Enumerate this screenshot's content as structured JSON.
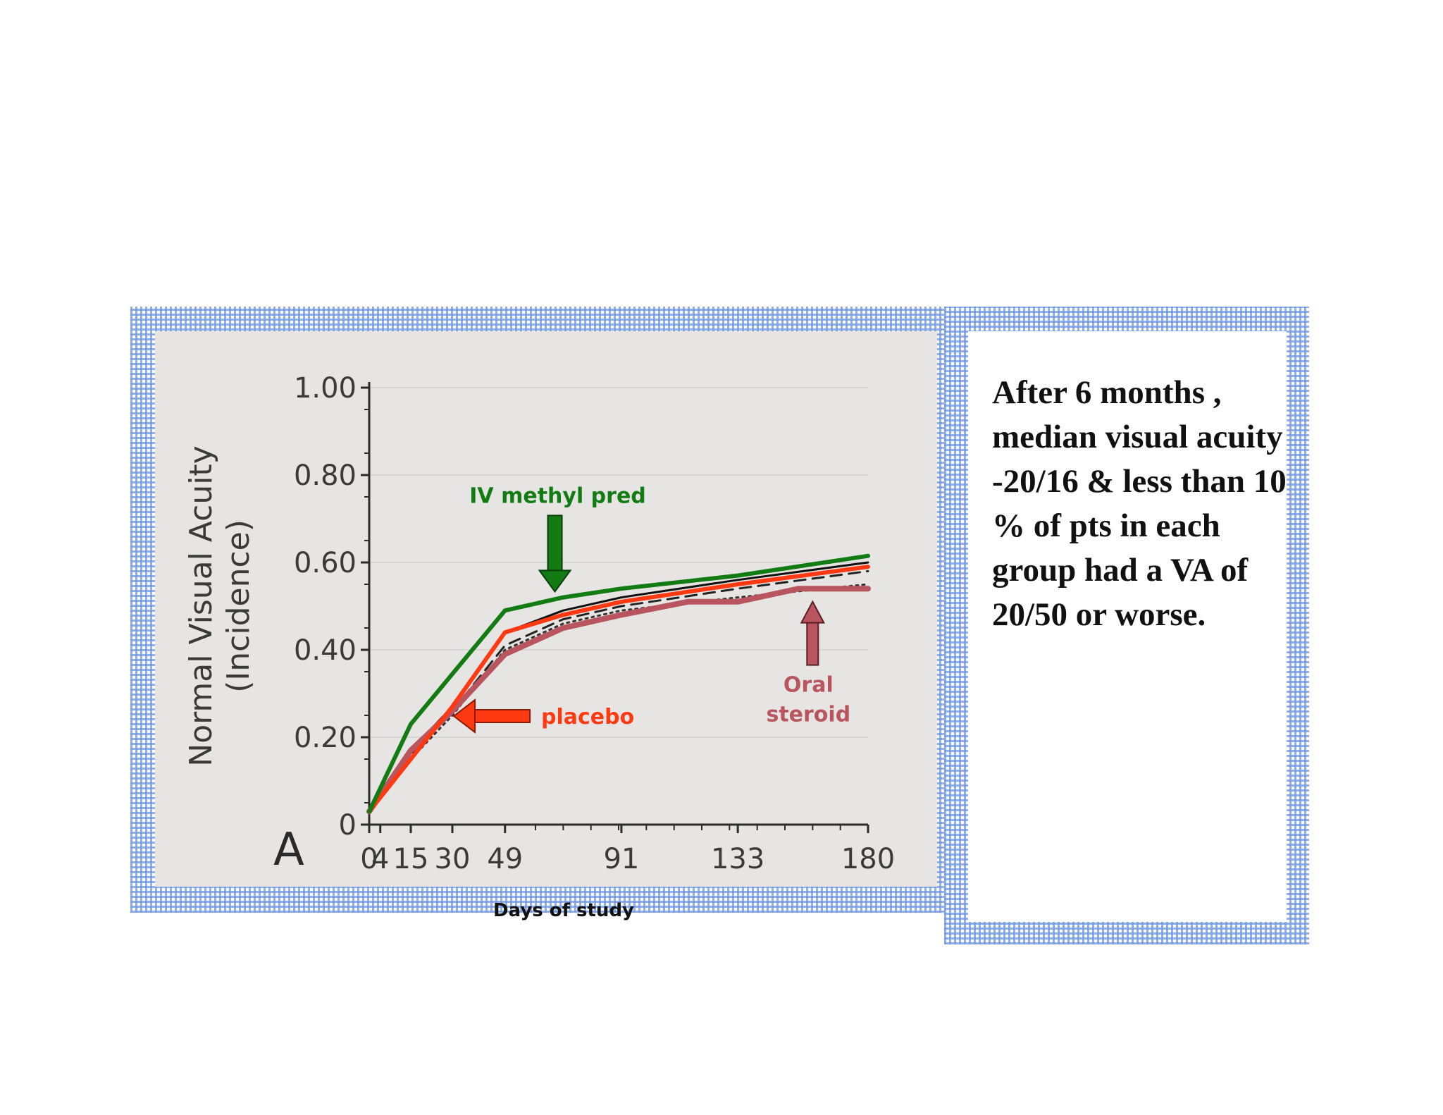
{
  "note": {
    "text": "After 6 months , median visual acuity -20/16 & less than 10 % of pts in each group had a VA of 20/50 or worse."
  },
  "colors": {
    "iv_methyl_pred": "#137b13",
    "placebo": "#ff3a12",
    "oral_steroid": "#b9555e",
    "frame": "#7aa0e8"
  },
  "chart_data": {
    "type": "line",
    "panel_label": "A",
    "xlabel": "Days of study",
    "ylabel": "Normal Visual Acuity",
    "ylabel_sub": "(Incidence)",
    "xlim": [
      0,
      180
    ],
    "ylim": [
      0,
      1.0
    ],
    "x_ticks": [
      0,
      4,
      15,
      30,
      49,
      91,
      133,
      180
    ],
    "x_tick_labels": [
      "0",
      "4",
      "15",
      "30",
      "49",
      "91",
      "133",
      "180"
    ],
    "y_ticks": [
      0,
      0.2,
      0.4,
      0.6,
      0.8,
      1.0
    ],
    "y_tick_labels": [
      "0",
      "0.20",
      "0.40",
      "0.60",
      "0.80",
      "1.00"
    ],
    "series": [
      {
        "name": "IV methyl pred",
        "color": "#137b13",
        "x": [
          0,
          15,
          49,
          70,
          91,
          133,
          180
        ],
        "y": [
          0.03,
          0.23,
          0.49,
          0.52,
          0.54,
          0.57,
          0.615
        ]
      },
      {
        "name": "placebo",
        "color": "#ff3a12",
        "x": [
          0,
          15,
          30,
          49,
          70,
          91,
          133,
          180
        ],
        "y": [
          0.03,
          0.15,
          0.27,
          0.44,
          0.48,
          0.51,
          0.55,
          0.59
        ]
      },
      {
        "name": "Oral steroid",
        "color": "#b9555e",
        "x": [
          0,
          15,
          30,
          49,
          70,
          91,
          115,
          133,
          155,
          180
        ],
        "y": [
          0.03,
          0.17,
          0.26,
          0.39,
          0.45,
          0.48,
          0.51,
          0.51,
          0.54,
          0.54
        ]
      },
      {
        "color": "#111111",
        "x": [
          0,
          15,
          30,
          49,
          70,
          91,
          133,
          180
        ],
        "y": [
          0.03,
          0.17,
          0.27,
          0.44,
          0.49,
          0.52,
          0.56,
          0.6
        ]
      },
      {
        "color": "#222222",
        "dash": "dashed",
        "x": [
          0,
          15,
          30,
          49,
          70,
          91,
          133,
          180
        ],
        "y": [
          0.03,
          0.16,
          0.26,
          0.41,
          0.47,
          0.5,
          0.54,
          0.58
        ]
      },
      {
        "color": "#333333",
        "dash": "dotted",
        "x": [
          0,
          15,
          30,
          49,
          70,
          91,
          133,
          180
        ],
        "y": [
          0.03,
          0.15,
          0.25,
          0.4,
          0.46,
          0.49,
          0.52,
          0.55
        ]
      }
    ],
    "annotations": [
      {
        "text": "IV methyl pred",
        "color": "#137b13",
        "arrow_direction": "down",
        "x": 67,
        "y": 0.53
      },
      {
        "text": "placebo",
        "color": "#ff3a12",
        "arrow_direction": "left",
        "x": 30,
        "y": 0.25
      },
      {
        "text": "Oral steroid",
        "color": "#b9555e",
        "arrow_direction": "up",
        "x": 160,
        "y": 0.52
      }
    ]
  }
}
